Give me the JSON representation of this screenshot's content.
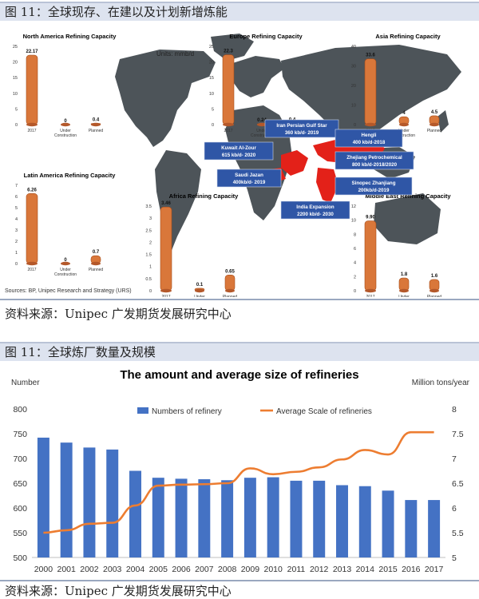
{
  "figure1": {
    "header": "图 11：全球现存、在建以及计划新增炼能",
    "units": "Units: mmb/d",
    "sources": "Sources: BP, Unipec Research and Strategy (URS)",
    "source_line": "资料来源：Unipec 广发期货发展研究中心",
    "x_labels": [
      "2017",
      "Under Construction",
      "Planned"
    ],
    "regions": [
      {
        "name": "North America Refining Capacity",
        "values": [
          22.17,
          0,
          0.4
        ],
        "labels": [
          "22.17",
          "0",
          "0.4"
        ],
        "yticks": [
          "25",
          "20",
          "15",
          "10",
          "5",
          "0"
        ]
      },
      {
        "name": "Europe Refining Capacity",
        "values": [
          22.3,
          0.24,
          0.4
        ],
        "labels": [
          "22.3",
          "0.24",
          "0.4"
        ],
        "yticks": [
          "25",
          "20",
          "15",
          "10",
          "5",
          "0"
        ]
      },
      {
        "name": "Asia Refining Capacity",
        "values": [
          33.6,
          4,
          4.5
        ],
        "labels": [
          "33.6",
          "4",
          "4.5"
        ],
        "yticks": [
          "40",
          "30",
          "20",
          "10",
          "0"
        ]
      },
      {
        "name": "Latin America Refining Capacity",
        "values": [
          6.26,
          0,
          0.7
        ],
        "labels": [
          "6.26",
          "0",
          "0.7"
        ],
        "yticks": [
          "7",
          "6",
          "5",
          "4",
          "3",
          "2",
          "1",
          "0"
        ]
      },
      {
        "name": "Africa Refining Capacity",
        "values": [
          3.46,
          0.1,
          0.65
        ],
        "labels": [
          "3.46",
          "0.1",
          "0.65"
        ],
        "yticks": [
          "3.5",
          "3",
          "2.5",
          "2",
          "1.5",
          "1",
          "0.5",
          "0"
        ]
      },
      {
        "name": "Middle East Refining Capacity",
        "values": [
          9.9,
          1.8,
          1.6
        ],
        "labels": [
          "9.90",
          "1.8",
          "1.6"
        ],
        "yticks": [
          "12",
          "10",
          "8",
          "6",
          "4",
          "2",
          "0"
        ]
      }
    ],
    "projects": [
      {
        "line1": "Iran Persian Gulf Star",
        "line2": "360 kb/d- 2019"
      },
      {
        "line1": "Hengli",
        "line2": "400 kb/d-2018"
      },
      {
        "line1": "Kuwait Al-Zour",
        "line2": "615 kb/d- 2020"
      },
      {
        "line1": "Zhejiang Petrochemical",
        "line2": "800 kb/d-2018/2020"
      },
      {
        "line1": "Saudi Jazan",
        "line2": "400kb/d- 2019"
      },
      {
        "line1": "Sinopec Zhanjiang",
        "line2": "200kb/d-2019"
      },
      {
        "line1": "India Expansion",
        "line2": "2200 kb/d- 2030"
      }
    ],
    "colors": {
      "bar": "#d9773a",
      "map": "#4d5459",
      "highlight": "#e32119",
      "box": "#2f56a6",
      "ocean": "#ffffff"
    }
  },
  "figure2": {
    "header": "图 11：全球炼厂数量及规模",
    "source_line": "资料来源：Unipec 广发期货发展研究中心"
  },
  "chart_data": {
    "type": "bar",
    "title": "The amount and average size of refineries",
    "ylabel_left": "Number",
    "ylabel_right": "Million tons/year",
    "categories": [
      "2000",
      "2001",
      "2002",
      "2003",
      "2004",
      "2005",
      "2006",
      "2007",
      "2008",
      "2009",
      "2010",
      "2011",
      "2012",
      "2013",
      "2014",
      "2015",
      "2016",
      "2017"
    ],
    "series": [
      {
        "name": "Numbers of refinery",
        "type": "bar",
        "axis": "left",
        "color": "#4472c4",
        "values": [
          742,
          732,
          722,
          718,
          675,
          661,
          659,
          658,
          656,
          661,
          662,
          655,
          655,
          646,
          644,
          635,
          616,
          616
        ]
      },
      {
        "name": "Average Scale of refineries",
        "type": "line",
        "axis": "right",
        "color": "#ed7d31",
        "values": [
          5.5,
          5.55,
          5.68,
          5.7,
          6.05,
          6.45,
          6.47,
          6.48,
          6.5,
          6.8,
          6.68,
          6.73,
          6.82,
          6.98,
          7.17,
          7.08,
          7.53,
          7.53
        ]
      }
    ],
    "ylim_left": [
      500,
      800
    ],
    "yticks_left": [
      "800",
      "750",
      "700",
      "650",
      "600",
      "550",
      "500"
    ],
    "ylim_right": [
      5,
      8
    ],
    "yticks_right": [
      "8",
      "7.5",
      "7",
      "6.5",
      "6",
      "5.5",
      "5"
    ],
    "legend": "top-center",
    "grid": false
  }
}
